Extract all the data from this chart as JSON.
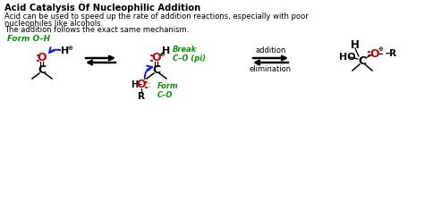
{
  "title": "Acid Catalysis Of Nucleophilic Addition",
  "line1": "Acid can be used to speed up the rate of addition reactions, especially with poor",
  "line2": "nucleophiles like alcohols.",
  "line3": "The addition follows the exact same mechanism.",
  "bg_color": "#ffffff",
  "text_color": "#000000",
  "red_color": "#cc0000",
  "green_color": "#009900",
  "blue_color": "#1a1aff",
  "form_oh_label": "Form O–H",
  "break_label": "Break\nC–O (pi)",
  "form_co_label": "Form\nC–O",
  "addition_label": "addition",
  "elimination_label": "elimination"
}
